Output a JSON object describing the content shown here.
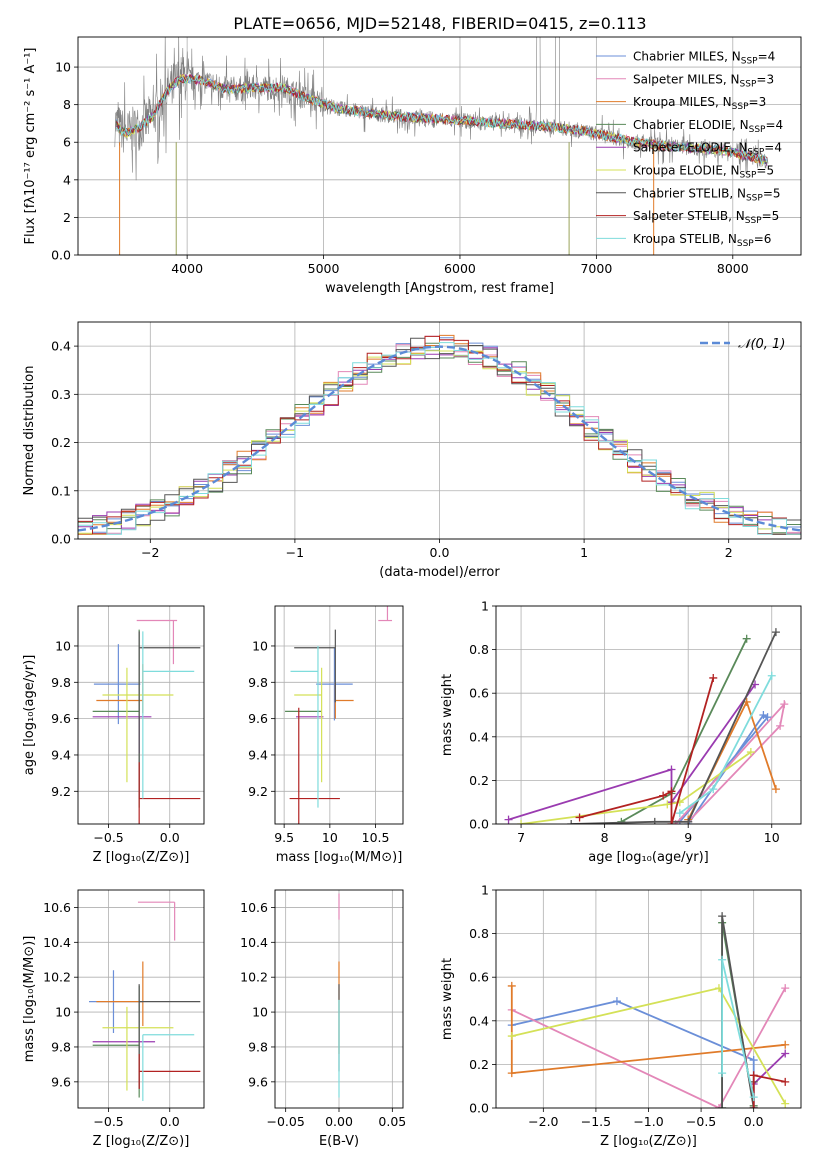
{
  "figure_title": "PLATE=0656, MJD=52148, FIBERID=0415, z=0.113",
  "legend_models": [
    {
      "label": "Chabrier MILES, N",
      "sub": "SSP",
      "tail": "=4",
      "color": "#6b8fd8"
    },
    {
      "label": "Salpeter MILES, N",
      "sub": "SSP",
      "tail": "=3",
      "color": "#e387b8"
    },
    {
      "label": "Kroupa MILES, N",
      "sub": "SSP",
      "tail": "=3",
      "color": "#e07b2a"
    },
    {
      "label": "Chabrier ELODIE, N",
      "sub": "SSP",
      "tail": "=4",
      "color": "#5a8a5a"
    },
    {
      "label": "Salpeter ELODIE, N",
      "sub": "SSP",
      "tail": "=4",
      "color": "#9a3bb0"
    },
    {
      "label": "Kroupa ELODIE, N",
      "sub": "SSP",
      "tail": "=5",
      "color": "#d4e157"
    },
    {
      "label": "Chabrier STELIB, N",
      "sub": "SSP",
      "tail": "=5",
      "color": "#555555"
    },
    {
      "label": "Salpeter STELIB, N",
      "sub": "SSP",
      "tail": "=5",
      "color": "#b22222"
    },
    {
      "label": "Kroupa STELIB, N",
      "sub": "SSP",
      "tail": "=6",
      "color": "#7fdcdc"
    }
  ],
  "chart_data": [
    {
      "id": "spectrum",
      "type": "line",
      "xlabel": "wavelength [Angstrom, rest frame]",
      "ylabel": "Flux [fλ10⁻¹⁷ erg cm⁻² s⁻¹ A⁻¹]",
      "xlim": [
        3200,
        8500
      ],
      "ylim": [
        0,
        11.6
      ],
      "xticks": [
        4000,
        5000,
        6000,
        7000,
        8000
      ],
      "yticks": [
        0,
        2,
        4,
        6,
        8,
        10
      ],
      "continuum": {
        "x": [
          3480,
          3520,
          3560,
          3650,
          3750,
          3850,
          3950,
          4100,
          4300,
          4500,
          4700,
          4900,
          5100,
          5300,
          5500,
          5700,
          5900,
          6100,
          6300,
          6500,
          6700,
          6900,
          7100,
          7300,
          7500,
          7700,
          7900,
          8100,
          8250
        ],
        "y": [
          7.0,
          6.6,
          6.5,
          6.8,
          7.4,
          8.7,
          9.4,
          9.3,
          8.8,
          8.9,
          8.9,
          8.3,
          7.8,
          7.6,
          7.4,
          7.3,
          7.2,
          7.1,
          7.0,
          6.9,
          6.8,
          6.6,
          6.3,
          6.0,
          5.8,
          5.7,
          5.6,
          5.3,
          5.0
        ]
      },
      "data_color": "#808080"
    },
    {
      "id": "residuals",
      "type": "line",
      "xlabel": "(data-model)/error",
      "ylabel": "Normed distribution",
      "xlim": [
        -2.5,
        2.5
      ],
      "ylim": [
        0,
        0.45
      ],
      "xticks": [
        -2,
        -1,
        0,
        1,
        2
      ],
      "yticks": [
        0.0,
        0.1,
        0.2,
        0.3,
        0.4
      ],
      "legend": "𝒩(0, 1)",
      "gaussian_color": "#5b8ad6",
      "bin_width": 0.1
    },
    {
      "id": "age-vs-z",
      "type": "scatter",
      "xlabel": "Z [log₁₀(Z/Z⊙)]",
      "ylabel": "age  [log₁₀(age/yr)]",
      "xlim": [
        -0.75,
        0.28
      ],
      "ylim": [
        9.02,
        10.22
      ],
      "xticks": [
        -0.5,
        0.0
      ],
      "yticks": [
        9.2,
        9.4,
        9.6,
        9.8,
        10.0
      ],
      "points": [
        {
          "x": -0.42,
          "y": 9.79,
          "xerr": [
            0.2,
            0.18
          ],
          "yerr": [
            0.22,
            0.22
          ],
          "color": "#6b8fd8"
        },
        {
          "x": 0.03,
          "y": 10.14,
          "xerr": [
            0.3,
            0.03
          ],
          "yerr": [
            0.24,
            0.0
          ],
          "color": "#e387b8"
        },
        {
          "x": -0.22,
          "y": 9.7,
          "xerr": [
            0.38,
            0.0
          ],
          "yerr": [
            0.07,
            0.2
          ],
          "color": "#e07b2a"
        },
        {
          "x": -0.25,
          "y": 9.64,
          "xerr": [
            0.38,
            0.0
          ],
          "yerr": [
            0.53,
            0.45
          ],
          "color": "#5a8a5a"
        },
        {
          "x": -0.25,
          "y": 9.61,
          "xerr": [
            0.38,
            0.1
          ],
          "yerr": [
            0.2,
            0.0
          ],
          "color": "#9a3bb0"
        },
        {
          "x": -0.35,
          "y": 9.73,
          "xerr": [
            0.2,
            0.38
          ],
          "yerr": [
            0.48,
            0.15
          ],
          "color": "#d4e157"
        },
        {
          "x": -0.25,
          "y": 9.99,
          "xerr": [
            0.0,
            0.5
          ],
          "yerr": [
            0.83,
            0.09
          ],
          "color": "#555555"
        },
        {
          "x": -0.25,
          "y": 9.16,
          "xerr": [
            0.0,
            0.5
          ],
          "yerr": [
            0.14,
            0.2
          ],
          "color": "#b22222"
        },
        {
          "x": -0.22,
          "y": 9.86,
          "xerr": [
            0.0,
            0.42
          ],
          "yerr": [
            0.7,
            0.22
          ],
          "color": "#7fdcdc"
        }
      ]
    },
    {
      "id": "age-vs-mass",
      "type": "scatter",
      "xlabel": "mass [log₁₀(M/M⊙)]",
      "ylabel": "",
      "xlim": [
        9.4,
        10.8
      ],
      "ylim": [
        9.02,
        10.22
      ],
      "xticks": [
        9.5,
        10.0,
        10.5
      ],
      "yticks": [
        9.2,
        9.4,
        9.6,
        9.8,
        10.0
      ],
      "points": [
        {
          "x": 10.05,
          "y": 9.79,
          "xerr": [
            0.2,
            0.2
          ],
          "yerr": [
            0.2,
            0.2
          ],
          "color": "#6b8fd8"
        },
        {
          "x": 10.63,
          "y": 10.14,
          "xerr": [
            0.1,
            0.05
          ],
          "yerr": [
            0.0,
            0.24
          ],
          "color": "#e387b8"
        },
        {
          "x": 10.06,
          "y": 9.7,
          "xerr": [
            0.0,
            0.2
          ],
          "yerr": [
            0.1,
            0.1
          ],
          "color": "#e07b2a"
        },
        {
          "x": 9.81,
          "y": 9.64,
          "xerr": [
            0.3,
            0.1
          ],
          "yerr": [
            0.0,
            0.0
          ],
          "color": "#5a8a5a"
        },
        {
          "x": 9.83,
          "y": 9.61,
          "xerr": [
            0.2,
            0.1
          ],
          "yerr": [
            0.0,
            0.0
          ],
          "color": "#9a3bb0"
        },
        {
          "x": 9.91,
          "y": 9.73,
          "xerr": [
            0.3,
            0.0
          ],
          "yerr": [
            0.48,
            0.15
          ],
          "color": "#d4e157"
        },
        {
          "x": 10.06,
          "y": 9.99,
          "xerr": [
            0.45,
            0.0
          ],
          "yerr": [
            0.3,
            0.1
          ],
          "color": "#555555"
        },
        {
          "x": 9.66,
          "y": 9.16,
          "xerr": [
            0.1,
            0.45
          ],
          "yerr": [
            0.5,
            0.5
          ],
          "color": "#b22222"
        },
        {
          "x": 9.87,
          "y": 9.86,
          "xerr": [
            0.3,
            0.0
          ],
          "yerr": [
            0.75,
            0.14
          ],
          "color": "#7fdcdc"
        }
      ]
    },
    {
      "id": "weight-vs-age",
      "type": "line",
      "xlabel": "age  [log₁₀(age/yr)]",
      "ylabel": "mass weight",
      "xlim": [
        6.7,
        10.35
      ],
      "ylim": [
        0,
        1.0
      ],
      "xticks": [
        7,
        8,
        9,
        10
      ],
      "yticks": [
        0.0,
        0.2,
        0.4,
        0.6,
        0.8,
        1.0
      ],
      "series": [
        {
          "color": "#6b8fd8",
          "x": [
            8.9,
            9.95,
            9.9,
            9.0
          ],
          "y": [
            0.01,
            0.49,
            0.5,
            0.0
          ]
        },
        {
          "color": "#e387b8",
          "x": [
            8.85,
            10.15,
            10.1,
            9.0
          ],
          "y": [
            0.0,
            0.55,
            0.45,
            0.01
          ]
        },
        {
          "color": "#e07b2a",
          "x": [
            9.0,
            9.7,
            10.05
          ],
          "y": [
            0.02,
            0.56,
            0.16
          ]
        },
        {
          "color": "#5a8a5a",
          "x": [
            8.2,
            8.8,
            9.7
          ],
          "y": [
            0.01,
            0.14,
            0.85
          ]
        },
        {
          "color": "#9a3bb0",
          "x": [
            6.85,
            8.8,
            8.8,
            9.8
          ],
          "y": [
            0.02,
            0.25,
            0.1,
            0.64
          ]
        },
        {
          "color": "#d4e157",
          "x": [
            7.0,
            8.75,
            8.9,
            9.75
          ],
          "y": [
            0.0,
            0.09,
            0.1,
            0.33
          ]
        },
        {
          "color": "#555555",
          "x": [
            7.6,
            8.6,
            9.0,
            10.05
          ],
          "y": [
            0.0,
            0.01,
            0.01,
            0.88
          ]
        },
        {
          "color": "#b22222",
          "x": [
            7.7,
            8.7,
            8.8,
            8.8,
            9.3
          ],
          "y": [
            0.03,
            0.13,
            0.15,
            0.0,
            0.67
          ]
        },
        {
          "color": "#7fdcdc",
          "x": [
            8.9,
            9.3,
            10.0
          ],
          "y": [
            0.05,
            0.16,
            0.68
          ]
        }
      ]
    },
    {
      "id": "mass-vs-z",
      "type": "scatter",
      "xlabel": "Z [log₁₀(Z/Z⊙)]",
      "ylabel": "mass [log₁₀(M/M⊙)]",
      "xlim": [
        -0.75,
        0.28
      ],
      "ylim": [
        9.45,
        10.7
      ],
      "xticks": [
        -0.5,
        0.0
      ],
      "yticks": [
        9.6,
        9.8,
        10.0,
        10.2,
        10.4,
        10.6
      ],
      "points": [
        {
          "x": -0.46,
          "y": 10.06,
          "xerr": [
            0.2,
            0.22
          ],
          "yerr": [
            0.18,
            0.18
          ],
          "color": "#6b8fd8"
        },
        {
          "x": 0.04,
          "y": 10.63,
          "xerr": [
            0.3,
            0.0
          ],
          "yerr": [
            0.22,
            0.0
          ],
          "color": "#e387b8"
        },
        {
          "x": -0.22,
          "y": 10.06,
          "xerr": [
            0.38,
            0.0
          ],
          "yerr": [
            0.14,
            0.23
          ],
          "color": "#e07b2a"
        },
        {
          "x": -0.25,
          "y": 9.81,
          "xerr": [
            0.38,
            0.0
          ],
          "yerr": [
            0.3,
            0.34
          ],
          "color": "#5a8a5a"
        },
        {
          "x": -0.25,
          "y": 9.83,
          "xerr": [
            0.38,
            0.13
          ],
          "yerr": [
            0.0,
            0.0
          ],
          "color": "#9a3bb0"
        },
        {
          "x": -0.35,
          "y": 9.91,
          "xerr": [
            0.2,
            0.38
          ],
          "yerr": [
            0.36,
            0.12
          ],
          "color": "#d4e157"
        },
        {
          "x": -0.25,
          "y": 10.06,
          "xerr": [
            0.0,
            0.5
          ],
          "yerr": [
            0.5,
            0.1
          ],
          "color": "#555555"
        },
        {
          "x": -0.25,
          "y": 9.66,
          "xerr": [
            0.0,
            0.5
          ],
          "yerr": [
            0.1,
            0.1
          ],
          "color": "#b22222"
        },
        {
          "x": -0.22,
          "y": 9.87,
          "xerr": [
            0.0,
            0.42
          ],
          "yerr": [
            0.38,
            0.0
          ],
          "color": "#7fdcdc"
        }
      ]
    },
    {
      "id": "mass-vs-ebv",
      "type": "scatter",
      "xlabel": "E(B-V)",
      "ylabel": "",
      "xlim": [
        -0.06,
        0.06
      ],
      "ylim": [
        9.45,
        10.7
      ],
      "xticks": [
        -0.05,
        0.0,
        0.05
      ],
      "xtick_labels": [
        "−0.05",
        "0.00",
        "0.05"
      ],
      "yticks": [
        9.6,
        9.8,
        10.0,
        10.2,
        10.4,
        10.6
      ],
      "points": [
        {
          "x": 0.0,
          "y": 10.63,
          "yerr": [
            0.1,
            0.05
          ],
          "color": "#e387b8"
        },
        {
          "x": 0.0,
          "y": 10.06,
          "yerr": [
            0.3,
            0.23
          ],
          "color": "#e07b2a"
        },
        {
          "x": 0.0,
          "y": 10.06,
          "yerr": [
            0.4,
            0.1
          ],
          "color": "#555555"
        },
        {
          "x": 0.0,
          "y": 9.87,
          "yerr": [
            0.36,
            0.2
          ],
          "color": "#7fdcdc"
        }
      ]
    },
    {
      "id": "weight-vs-z",
      "type": "line",
      "xlabel": "Z [log₁₀(Z/Z⊙)]",
      "ylabel": "mass weight",
      "xlim": [
        -2.45,
        0.45
      ],
      "ylim": [
        0,
        1.0
      ],
      "xticks": [
        -2.0,
        -1.5,
        -1.0,
        -0.5,
        0.0
      ],
      "xtick_labels": [
        "−2.0",
        "−1.5",
        "−1.0",
        "−0.5",
        "0.0"
      ],
      "yticks": [
        0.0,
        0.2,
        0.4,
        0.6,
        0.8,
        1.0
      ],
      "series": [
        {
          "color": "#6b8fd8",
          "x": [
            -2.3,
            -1.3,
            0.0,
            0.0
          ],
          "y": [
            0.38,
            0.49,
            0.22,
            0.0
          ]
        },
        {
          "color": "#e387b8",
          "x": [
            -2.3,
            -0.33,
            0.3
          ],
          "y": [
            0.45,
            0.0,
            0.55
          ]
        },
        {
          "color": "#e07b2a",
          "x": [
            -2.3,
            -2.3,
            0.3
          ],
          "y": [
            0.56,
            0.16,
            0.29
          ]
        },
        {
          "color": "#5a8a5a",
          "x": [
            -0.3,
            -0.3,
            0.0
          ],
          "y": [
            0.0,
            0.85,
            0.01
          ]
        },
        {
          "color": "#9a3bb0",
          "x": [
            0.0,
            0.0,
            0.3
          ],
          "y": [
            0.0,
            0.11,
            0.25
          ]
        },
        {
          "color": "#d4e157",
          "x": [
            -2.3,
            -0.33,
            0.3
          ],
          "y": [
            0.33,
            0.55,
            0.02
          ]
        },
        {
          "color": "#555555",
          "x": [
            -0.3,
            -0.3,
            0.0,
            0.0
          ],
          "y": [
            0.0,
            0.88,
            0.0,
            0.12
          ]
        },
        {
          "color": "#b22222",
          "x": [
            0.0,
            0.0,
            0.3
          ],
          "y": [
            0.0,
            0.15,
            0.12
          ]
        },
        {
          "color": "#7fdcdc",
          "x": [
            -0.3,
            -0.3,
            0.0
          ],
          "y": [
            0.16,
            0.68,
            0.05
          ]
        }
      ]
    }
  ]
}
